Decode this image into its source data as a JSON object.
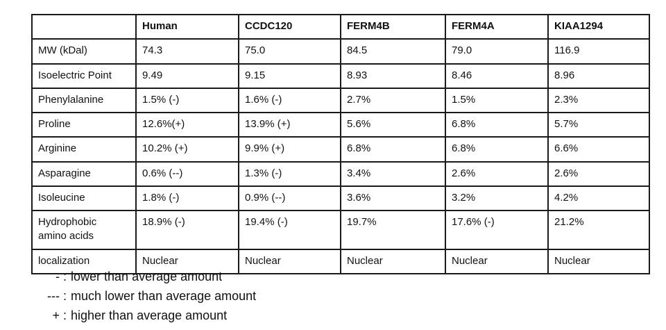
{
  "table": {
    "columns": [
      "",
      "Human",
      "CCDC120",
      "FERM4B",
      "FERM4A",
      "KIAA1294"
    ],
    "rows": [
      {
        "label": "MW (kDal)",
        "values": [
          "74.3",
          "75.0",
          "84.5",
          "79.0",
          "116.9"
        ]
      },
      {
        "label": "Isoelectric Point",
        "values": [
          "9.49",
          "9.15",
          "8.93",
          "8.46",
          "8.96"
        ]
      },
      {
        "label": "Phenylalanine",
        "values": [
          "1.5% (-)",
          "1.6% (-)",
          "2.7%",
          "1.5%",
          "2.3%"
        ]
      },
      {
        "label": "Proline",
        "values": [
          "12.6%(+)",
          "13.9% (+)",
          "5.6%",
          "6.8%",
          "5.7%"
        ]
      },
      {
        "label": "Arginine",
        "values": [
          "10.2% (+)",
          "9.9% (+)",
          "6.8%",
          "6.8%",
          "6.6%"
        ]
      },
      {
        "label": "Asparagine",
        "values": [
          "0.6% (--)",
          "1.3% (-)",
          "3.4%",
          "2.6%",
          "2.6%"
        ]
      },
      {
        "label": "Isoleucine",
        "values": [
          "1.8% (-)",
          "0.9% (--)",
          "3.6%",
          "3.2%",
          "4.2%"
        ]
      },
      {
        "label": "Hydrophobic amino acids",
        "values": [
          "18.9% (-)",
          "19.4% (-)",
          "19.7%",
          "17.6% (-)",
          "21.2%"
        ],
        "tall": true
      },
      {
        "label": "localization",
        "values": [
          "Nuclear",
          "Nuclear",
          "Nuclear",
          "Nuclear",
          "Nuclear"
        ]
      }
    ]
  },
  "legend": {
    "items": [
      {
        "symbol": "-",
        "text": "lower than average amount"
      },
      {
        "symbol": "---",
        "text": "much lower than average amount"
      },
      {
        "symbol": "+",
        "text": "higher than average amount"
      }
    ]
  },
  "colors": {
    "border": "#1a1a1a",
    "text": "#111111",
    "background": "#ffffff"
  }
}
